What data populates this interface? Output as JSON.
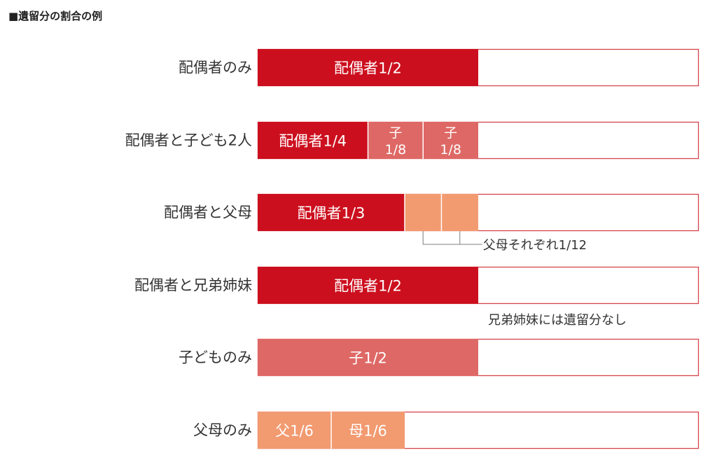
{
  "header": {
    "title": "■遺留分の割合の例"
  },
  "colors": {
    "spouse": "#cc0f1e",
    "child": "#de6865",
    "parent": "#f29a70",
    "remainder_border": "#d6454b",
    "text": "#333333",
    "segment_text": "#ffffff",
    "bracket": "#999999"
  },
  "chart_data": {
    "type": "bar",
    "orientation": "horizontal",
    "stacked": true,
    "title": "■遺留分の割合の例",
    "xlim": [
      0,
      1
    ],
    "categories": [
      "配偶者のみ",
      "配偶者と子ども2人",
      "配偶者と父母",
      "配偶者と兄弟姉妹",
      "子どものみ",
      "父母のみ"
    ],
    "rows": [
      {
        "category": "配偶者のみ",
        "segments": [
          {
            "role": "spouse",
            "value": 0.5,
            "label": "配偶者1/2"
          }
        ]
      },
      {
        "category": "配偶者と子ども2人",
        "segments": [
          {
            "role": "spouse",
            "value": 0.25,
            "label": "配偶者1/4"
          },
          {
            "role": "child",
            "value": 0.125,
            "label_top": "子",
            "label_bottom": "1/8"
          },
          {
            "role": "child",
            "value": 0.125,
            "label_top": "子",
            "label_bottom": "1/8"
          }
        ]
      },
      {
        "category": "配偶者と父母",
        "segments": [
          {
            "role": "spouse",
            "value": 0.3333,
            "label": "配偶者1/3"
          },
          {
            "role": "parent",
            "value": 0.0833,
            "label": ""
          },
          {
            "role": "parent",
            "value": 0.0833,
            "label": ""
          }
        ],
        "note": "父母それぞれ1/12"
      },
      {
        "category": "配偶者と兄弟姉妹",
        "segments": [
          {
            "role": "spouse",
            "value": 0.5,
            "label": "配偶者1/2"
          }
        ],
        "note": "兄弟姉妹には遺留分なし"
      },
      {
        "category": "子どものみ",
        "segments": [
          {
            "role": "child",
            "value": 0.5,
            "label": "子1/2"
          }
        ]
      },
      {
        "category": "父母のみ",
        "segments": [
          {
            "role": "parent",
            "value": 0.1667,
            "label": "父1/6"
          },
          {
            "role": "parent",
            "value": 0.1667,
            "label": "母1/6"
          }
        ]
      }
    ]
  }
}
